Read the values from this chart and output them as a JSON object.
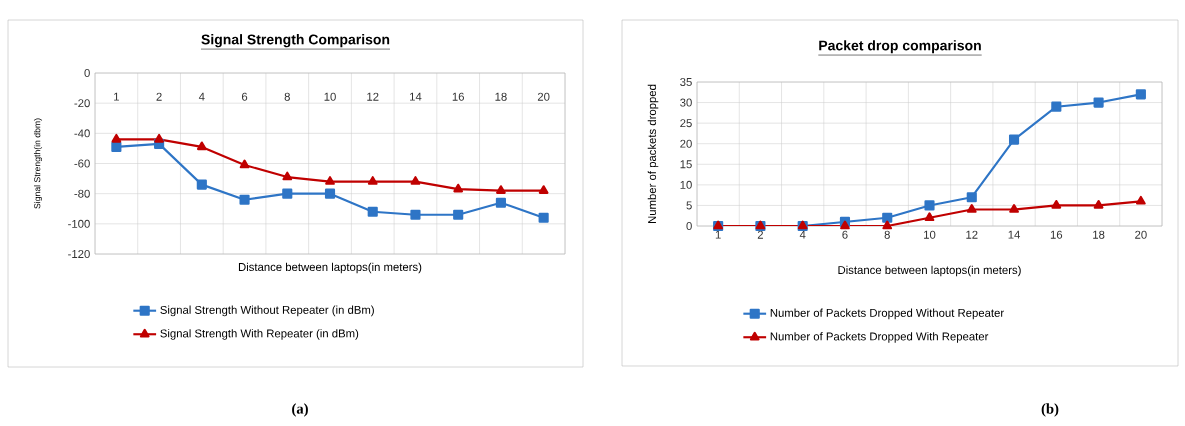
{
  "chart_data": [
    {
      "type": "line",
      "title": "Signal Strength Comparison",
      "xlabel": "Distance between laptops(in meters)",
      "ylabel": "Signal Strength(in dbm)",
      "categories": [
        "1",
        "2",
        "4",
        "6",
        "8",
        "10",
        "12",
        "14",
        "16",
        "18",
        "20"
      ],
      "ylim": [
        -120,
        0
      ],
      "yticks": [
        -120,
        -100,
        -80,
        -60,
        -40,
        -20,
        0
      ],
      "grid": true,
      "legend": "bottom",
      "series": [
        {
          "name": "Signal Strength Without Repeater (in dBm)",
          "color": "#2e75c6",
          "marker": "square",
          "values": [
            -49,
            -47,
            -74,
            -84,
            -80,
            -80,
            -92,
            -94,
            -94,
            -86,
            -96
          ]
        },
        {
          "name": "Signal Strength With Repeater  (in dBm)",
          "color": "#c00000",
          "marker": "triangle",
          "values": [
            -44,
            -44,
            -49,
            -61,
            -69,
            -72,
            -72,
            -72,
            -77,
            -78,
            -78
          ]
        }
      ],
      "annotations": [
        "(a)"
      ]
    },
    {
      "type": "line",
      "title": "Packet drop comparison",
      "xlabel": "Distance between laptops(in meters)",
      "ylabel": "Number of packets dropped",
      "categories": [
        "1",
        "2",
        "4",
        "6",
        "8",
        "10",
        "12",
        "14",
        "16",
        "18",
        "20"
      ],
      "ylim": [
        0,
        35
      ],
      "yticks": [
        0,
        5,
        10,
        15,
        20,
        25,
        30,
        35
      ],
      "grid": true,
      "legend": "bottom",
      "series": [
        {
          "name": "Number of Packets Dropped Without Repeater",
          "color": "#2e75c6",
          "marker": "square",
          "values": [
            0,
            0,
            0,
            1,
            2,
            5,
            7,
            21,
            29,
            30,
            32
          ]
        },
        {
          "name": "Number of Packets Dropped With Repeater",
          "color": "#c00000",
          "marker": "triangle",
          "values": [
            0,
            0,
            0,
            0,
            0,
            2,
            4,
            4,
            5,
            5,
            6
          ]
        }
      ],
      "annotations": [
        "(b)"
      ]
    }
  ]
}
